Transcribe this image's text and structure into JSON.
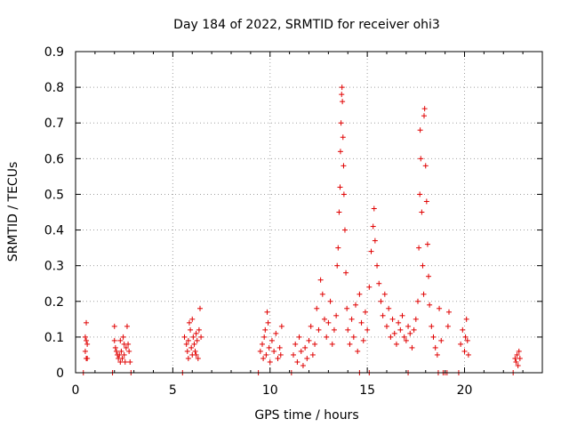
{
  "chart_data": {
    "type": "scatter",
    "title": "Day 184 of 2022, SRMTID for receiver ohi3",
    "xlabel": "GPS time / hours",
    "ylabel": "SRMTID / TECUs",
    "xlim": [
      0,
      24
    ],
    "ylim": [
      0,
      0.9
    ],
    "grid": true,
    "marker": "plus",
    "color": "#e00000",
    "x_ticks": [
      0,
      5,
      10,
      15,
      20
    ],
    "x_tick_labels": [
      "0",
      "5",
      "10",
      "15",
      "20"
    ],
    "y_ticks": [
      0,
      0.1,
      0.2,
      0.3,
      0.4,
      0.5,
      0.6,
      0.7,
      0.8,
      0.9
    ],
    "y_tick_labels": [
      "0",
      "0.1",
      "0.2",
      "0.3",
      "0.4",
      "0.5",
      "0.6",
      "0.7",
      "0.8",
      "0.9"
    ],
    "series": [
      {
        "name": "SRMTID",
        "points": [
          [
            0.4,
            0.0
          ],
          [
            0.55,
            0.14
          ],
          [
            0.5,
            0.1
          ],
          [
            0.55,
            0.09
          ],
          [
            0.6,
            0.08
          ],
          [
            0.5,
            0.06
          ],
          [
            0.55,
            0.04
          ],
          [
            0.6,
            0.04
          ],
          [
            1.9,
            0.0
          ],
          [
            2.0,
            0.13
          ],
          [
            2.0,
            0.09
          ],
          [
            2.05,
            0.07
          ],
          [
            2.1,
            0.06
          ],
          [
            2.15,
            0.05
          ],
          [
            2.2,
            0.04
          ],
          [
            2.25,
            0.05
          ],
          [
            2.3,
            0.03
          ],
          [
            2.35,
            0.06
          ],
          [
            2.4,
            0.04
          ],
          [
            2.45,
            0.1
          ],
          [
            2.5,
            0.05
          ],
          [
            2.55,
            0.03
          ],
          [
            2.6,
            0.07
          ],
          [
            2.65,
            0.13
          ],
          [
            2.7,
            0.08
          ],
          [
            2.75,
            0.06
          ],
          [
            2.8,
            0.03
          ],
          [
            2.85,
            0.0
          ],
          [
            2.3,
            0.09
          ],
          [
            2.5,
            0.08
          ],
          [
            5.5,
            0.0
          ],
          [
            5.6,
            0.1
          ],
          [
            5.7,
            0.08
          ],
          [
            5.75,
            0.06
          ],
          [
            5.8,
            0.09
          ],
          [
            5.85,
            0.14
          ],
          [
            5.9,
            0.12
          ],
          [
            5.95,
            0.07
          ],
          [
            6.0,
            0.05
          ],
          [
            6.05,
            0.1
          ],
          [
            6.1,
            0.08
          ],
          [
            6.15,
            0.06
          ],
          [
            6.2,
            0.11
          ],
          [
            6.25,
            0.09
          ],
          [
            6.3,
            0.04
          ],
          [
            6.35,
            0.12
          ],
          [
            6.4,
            0.18
          ],
          [
            6.45,
            0.1
          ],
          [
            5.8,
            0.04
          ],
          [
            6.0,
            0.15
          ],
          [
            6.2,
            0.05
          ],
          [
            9.4,
            0.0
          ],
          [
            9.5,
            0.06
          ],
          [
            9.6,
            0.08
          ],
          [
            9.65,
            0.04
          ],
          [
            9.7,
            0.1
          ],
          [
            9.75,
            0.12
          ],
          [
            9.8,
            0.05
          ],
          [
            9.85,
            0.17
          ],
          [
            9.9,
            0.14
          ],
          [
            9.95,
            0.07
          ],
          [
            10.0,
            0.03
          ],
          [
            10.1,
            0.09
          ],
          [
            10.2,
            0.06
          ],
          [
            10.3,
            0.11
          ],
          [
            10.4,
            0.04
          ],
          [
            10.5,
            0.07
          ],
          [
            10.6,
            0.13
          ],
          [
            10.55,
            0.05
          ],
          [
            11.1,
            0.0
          ],
          [
            11.2,
            0.05
          ],
          [
            11.3,
            0.08
          ],
          [
            11.4,
            0.03
          ],
          [
            11.5,
            0.1
          ],
          [
            11.6,
            0.06
          ],
          [
            11.7,
            0.02
          ],
          [
            11.8,
            0.07
          ],
          [
            11.9,
            0.04
          ],
          [
            12.0,
            0.09
          ],
          [
            12.1,
            0.13
          ],
          [
            12.2,
            0.05
          ],
          [
            12.3,
            0.08
          ],
          [
            12.4,
            0.18
          ],
          [
            12.5,
            0.12
          ],
          [
            12.6,
            0.26
          ],
          [
            12.7,
            0.22
          ],
          [
            12.8,
            0.15
          ],
          [
            12.9,
            0.1
          ],
          [
            13.0,
            0.14
          ],
          [
            13.1,
            0.2
          ],
          [
            13.2,
            0.08
          ],
          [
            13.3,
            0.12
          ],
          [
            13.4,
            0.16
          ],
          [
            13.45,
            0.3
          ],
          [
            13.5,
            0.35
          ],
          [
            13.55,
            0.45
          ],
          [
            13.6,
            0.52
          ],
          [
            13.62,
            0.62
          ],
          [
            13.65,
            0.7
          ],
          [
            13.68,
            0.78
          ],
          [
            13.7,
            0.8
          ],
          [
            13.72,
            0.76
          ],
          [
            13.75,
            0.66
          ],
          [
            13.78,
            0.58
          ],
          [
            13.8,
            0.5
          ],
          [
            13.85,
            0.4
          ],
          [
            13.9,
            0.28
          ],
          [
            13.95,
            0.18
          ],
          [
            14.0,
            0.12
          ],
          [
            14.1,
            0.08
          ],
          [
            14.2,
            0.15
          ],
          [
            14.3,
            0.1
          ],
          [
            14.4,
            0.19
          ],
          [
            14.5,
            0.06
          ],
          [
            14.6,
            0.22
          ],
          [
            14.7,
            0.14
          ],
          [
            14.8,
            0.09
          ],
          [
            14.9,
            0.17
          ],
          [
            15.0,
            0.12
          ],
          [
            15.1,
            0.24
          ],
          [
            15.2,
            0.34
          ],
          [
            15.3,
            0.41
          ],
          [
            15.35,
            0.46
          ],
          [
            15.4,
            0.37
          ],
          [
            15.5,
            0.3
          ],
          [
            15.6,
            0.25
          ],
          [
            15.7,
            0.2
          ],
          [
            15.8,
            0.16
          ],
          [
            15.9,
            0.22
          ],
          [
            16.0,
            0.13
          ],
          [
            16.1,
            0.18
          ],
          [
            16.2,
            0.1
          ],
          [
            16.3,
            0.15
          ],
          [
            16.4,
            0.11
          ],
          [
            16.5,
            0.08
          ],
          [
            16.6,
            0.14
          ],
          [
            16.7,
            0.12
          ],
          [
            16.8,
            0.16
          ],
          [
            16.9,
            0.1
          ],
          [
            17.0,
            0.09
          ],
          [
            17.1,
            0.13
          ],
          [
            17.2,
            0.11
          ],
          [
            17.3,
            0.07
          ],
          [
            17.4,
            0.12
          ],
          [
            17.5,
            0.15
          ],
          [
            17.6,
            0.2
          ],
          [
            17.65,
            0.35
          ],
          [
            17.7,
            0.5
          ],
          [
            17.72,
            0.68
          ],
          [
            17.75,
            0.6
          ],
          [
            17.8,
            0.45
          ],
          [
            17.85,
            0.3
          ],
          [
            17.9,
            0.22
          ],
          [
            17.92,
            0.72
          ],
          [
            17.95,
            0.74
          ],
          [
            18.0,
            0.58
          ],
          [
            18.05,
            0.48
          ],
          [
            18.1,
            0.36
          ],
          [
            18.15,
            0.27
          ],
          [
            18.2,
            0.19
          ],
          [
            18.3,
            0.13
          ],
          [
            18.4,
            0.1
          ],
          [
            18.5,
            0.07
          ],
          [
            18.6,
            0.05
          ],
          [
            18.7,
            0.18
          ],
          [
            18.8,
            0.09
          ],
          [
            18.65,
            0.0
          ],
          [
            18.9,
            0.0
          ],
          [
            19.0,
            0.0
          ],
          [
            19.1,
            0.0
          ],
          [
            19.15,
            0.13
          ],
          [
            19.2,
            0.17
          ],
          [
            19.7,
            0.0
          ],
          [
            19.8,
            0.08
          ],
          [
            19.9,
            0.12
          ],
          [
            20.0,
            0.06
          ],
          [
            20.05,
            0.1
          ],
          [
            20.1,
            0.15
          ],
          [
            20.15,
            0.09
          ],
          [
            20.2,
            0.05
          ],
          [
            15.1,
            0.0
          ],
          [
            14.6,
            0.0
          ],
          [
            17.1,
            0.0
          ],
          [
            22.5,
            0.0
          ],
          [
            22.6,
            0.04
          ],
          [
            22.65,
            0.03
          ],
          [
            22.7,
            0.05
          ],
          [
            22.75,
            0.02
          ],
          [
            22.8,
            0.06
          ],
          [
            22.85,
            0.04
          ]
        ]
      }
    ]
  }
}
